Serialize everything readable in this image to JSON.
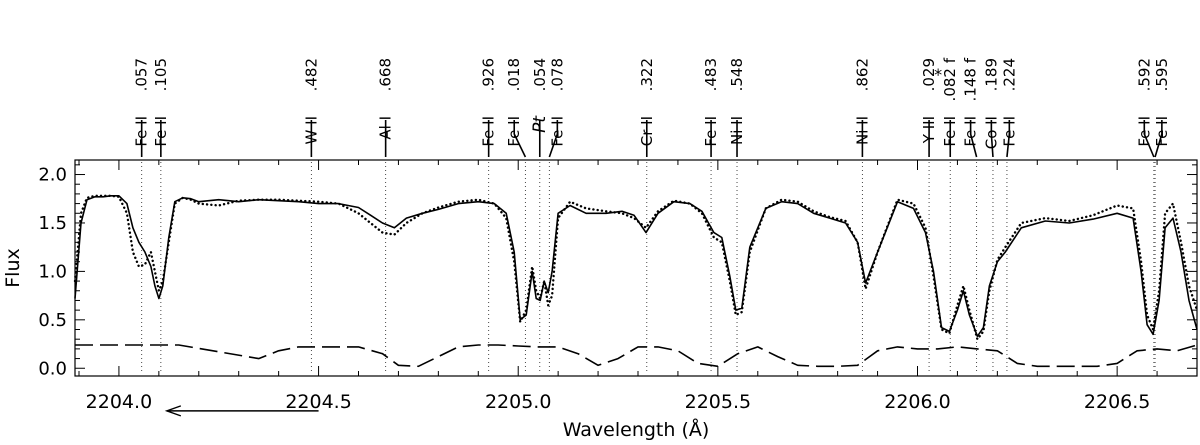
{
  "chart_data": {
    "type": "line",
    "title": "",
    "xlabel": "Wavelength (Å)",
    "ylabel": "Flux",
    "xlim": [
      2203.89,
      2206.7
    ],
    "ylim": [
      -0.08,
      2.15
    ],
    "grid": false,
    "legend": "none",
    "x_ticks": [
      2204.0,
      2204.5,
      2205.0,
      2205.5,
      2206.0,
      2206.5
    ],
    "x_tick_labels": [
      "2204.0",
      "2204.5",
      "2205.0",
      "2205.5",
      "2206.0",
      "2206.5"
    ],
    "y_ticks": [
      0.0,
      0.5,
      1.0,
      1.5,
      2.0
    ],
    "y_tick_labels": [
      "0.0",
      "0.5",
      "1.0",
      "1.5",
      "2.0"
    ],
    "direction_arrow": {
      "from": 2204.5,
      "to": 2204.12,
      "y": -0.44
    },
    "line_ids": [
      {
        "species": "Fe II",
        "digits": ".057",
        "w": 2204.057,
        "label_x": 2204.057
      },
      {
        "species": "Fe II",
        "digits": ".105",
        "w": 2204.105,
        "label_x": 2204.105
      },
      {
        "species": "W II",
        "digits": ".482",
        "w": 2204.482,
        "label_x": 2204.482
      },
      {
        "species": "Al I",
        "digits": ".668",
        "w": 2204.668,
        "label_x": 2204.668
      },
      {
        "species": "Fe II",
        "digits": ".926",
        "w": 2204.926,
        "label_x": 2204.926
      },
      {
        "species": "Fe II",
        "digits": ".018",
        "w": 2205.018,
        "label_x": 2204.99
      },
      {
        "species": "Pt",
        "digits": ".054",
        "w": 2205.054,
        "label_x": 2205.054,
        "italic": true
      },
      {
        "species": "Fe II",
        "digits": ".078",
        "w": 2205.078,
        "label_x": 2205.098
      },
      {
        "species": "Cr II",
        "digits": ".322",
        "w": 2205.322,
        "label_x": 2205.322
      },
      {
        "species": "Fe II",
        "digits": ".483",
        "w": 2205.483,
        "label_x": 2205.483
      },
      {
        "species": "Ni II",
        "digits": ".548",
        "w": 2205.548,
        "label_x": 2205.548
      },
      {
        "species": "Ni II",
        "digits": ".862",
        "w": 2205.862,
        "label_x": 2205.862
      },
      {
        "species": "Y III",
        "digits": ".029",
        "w": 2206.029,
        "label_x": 2206.029,
        "mark": "*"
      },
      {
        "species": "Fe II",
        "digits": ".082 f",
        "w": 2206.082,
        "label_x": 2206.082
      },
      {
        "species": "Fe II",
        "digits": ".148 f",
        "w": 2206.148,
        "label_x": 2206.133
      },
      {
        "species": "Co II",
        "digits": ".189",
        "w": 2206.189,
        "label_x": 2206.185
      },
      {
        "species": "Fe II",
        "digits": ".224",
        "w": 2206.224,
        "label_x": 2206.23
      },
      {
        "species": "Fe II",
        "digits": ".592",
        "w": 2206.592,
        "label_x": 2206.568
      },
      {
        "species": "Fe II",
        "digits": ".595",
        "w": 2206.595,
        "label_x": 2206.612
      }
    ],
    "series": [
      {
        "style": "solid",
        "x": [
          2203.89,
          2203.905,
          2203.92,
          2203.94,
          2203.96,
          2203.98,
          2204.0,
          2204.02,
          2204.035,
          2204.05,
          2204.065,
          2204.08,
          2204.09,
          2204.1,
          2204.11,
          2204.125,
          2204.14,
          2204.16,
          2204.18,
          2204.2,
          2204.25,
          2204.3,
          2204.35,
          2204.4,
          2204.45,
          2204.5,
          2204.55,
          2204.6,
          2204.63,
          2204.66,
          2204.69,
          2204.72,
          2204.76,
          2204.8,
          2204.85,
          2204.9,
          2204.94,
          2204.97,
          2204.99,
          2205.005,
          2205.02,
          2205.035,
          2205.045,
          2205.055,
          2205.065,
          2205.075,
          2205.085,
          2205.1,
          2205.13,
          2205.17,
          2205.22,
          2205.26,
          2205.29,
          2205.32,
          2205.35,
          2205.39,
          2205.43,
          2205.46,
          2205.49,
          2205.51,
          2205.53,
          2205.545,
          2205.56,
          2205.58,
          2205.62,
          2205.66,
          2205.7,
          2205.74,
          2205.78,
          2205.82,
          2205.85,
          2205.87,
          2205.9,
          2205.95,
          2205.99,
          2206.02,
          2206.04,
          2206.06,
          2206.08,
          2206.1,
          2206.115,
          2206.13,
          2206.15,
          2206.165,
          2206.18,
          2206.2,
          2206.22,
          2206.26,
          2206.32,
          2206.38,
          2206.44,
          2206.5,
          2206.54,
          2206.56,
          2206.575,
          2206.59,
          2206.605,
          2206.62,
          2206.64,
          2206.66,
          2206.68,
          2206.7
        ],
        "y": [
          0.72,
          1.5,
          1.74,
          1.77,
          1.77,
          1.78,
          1.78,
          1.7,
          1.45,
          1.3,
          1.2,
          1.05,
          0.85,
          0.72,
          0.85,
          1.35,
          1.72,
          1.76,
          1.75,
          1.72,
          1.74,
          1.72,
          1.74,
          1.73,
          1.72,
          1.7,
          1.7,
          1.66,
          1.58,
          1.5,
          1.45,
          1.55,
          1.6,
          1.64,
          1.7,
          1.72,
          1.7,
          1.6,
          1.2,
          0.5,
          0.55,
          1.0,
          0.72,
          0.7,
          0.9,
          0.78,
          1.0,
          1.6,
          1.68,
          1.6,
          1.6,
          1.62,
          1.58,
          1.4,
          1.6,
          1.72,
          1.7,
          1.62,
          1.4,
          1.35,
          0.95,
          0.6,
          0.62,
          1.25,
          1.65,
          1.72,
          1.7,
          1.6,
          1.55,
          1.5,
          1.3,
          0.88,
          1.2,
          1.72,
          1.65,
          1.4,
          1.0,
          0.42,
          0.38,
          0.6,
          0.8,
          0.55,
          0.33,
          0.42,
          0.85,
          1.1,
          1.2,
          1.45,
          1.52,
          1.5,
          1.54,
          1.6,
          1.55,
          1.0,
          0.45,
          0.35,
          0.7,
          1.45,
          1.55,
          1.2,
          0.7,
          0.4
        ]
      },
      {
        "style": "dotted",
        "x": [
          2203.89,
          2203.905,
          2203.92,
          2203.94,
          2203.96,
          2203.98,
          2204.0,
          2204.02,
          2204.035,
          2204.05,
          2204.065,
          2204.08,
          2204.09,
          2204.1,
          2204.11,
          2204.125,
          2204.14,
          2204.16,
          2204.18,
          2204.2,
          2204.25,
          2204.3,
          2204.35,
          2204.4,
          2204.45,
          2204.5,
          2204.55,
          2204.6,
          2204.63,
          2204.66,
          2204.69,
          2204.72,
          2204.76,
          2204.8,
          2204.85,
          2204.9,
          2204.94,
          2204.97,
          2204.99,
          2205.005,
          2205.02,
          2205.035,
          2205.045,
          2205.055,
          2205.065,
          2205.075,
          2205.085,
          2205.1,
          2205.13,
          2205.17,
          2205.22,
          2205.26,
          2205.29,
          2205.32,
          2205.35,
          2205.39,
          2205.43,
          2205.46,
          2205.49,
          2205.51,
          2205.53,
          2205.545,
          2205.56,
          2205.58,
          2205.62,
          2205.66,
          2205.7,
          2205.74,
          2205.78,
          2205.82,
          2205.85,
          2205.87,
          2205.9,
          2205.95,
          2205.99,
          2206.02,
          2206.04,
          2206.06,
          2206.08,
          2206.1,
          2206.115,
          2206.13,
          2206.15,
          2206.165,
          2206.18,
          2206.2,
          2206.22,
          2206.26,
          2206.32,
          2206.38,
          2206.44,
          2206.5,
          2206.54,
          2206.56,
          2206.575,
          2206.59,
          2206.605,
          2206.62,
          2206.64,
          2206.66,
          2206.68,
          2206.7
        ],
        "y": [
          0.9,
          1.6,
          1.76,
          1.78,
          1.78,
          1.78,
          1.77,
          1.6,
          1.2,
          1.05,
          1.07,
          1.2,
          1.0,
          0.8,
          0.9,
          1.3,
          1.7,
          1.76,
          1.74,
          1.7,
          1.68,
          1.73,
          1.74,
          1.74,
          1.73,
          1.72,
          1.7,
          1.6,
          1.5,
          1.4,
          1.38,
          1.5,
          1.6,
          1.66,
          1.72,
          1.74,
          1.7,
          1.55,
          1.1,
          0.48,
          0.6,
          1.05,
          0.8,
          0.72,
          0.9,
          0.65,
          0.75,
          1.55,
          1.72,
          1.65,
          1.62,
          1.6,
          1.55,
          1.45,
          1.62,
          1.73,
          1.7,
          1.6,
          1.35,
          1.3,
          0.9,
          0.55,
          0.58,
          1.2,
          1.65,
          1.74,
          1.72,
          1.62,
          1.56,
          1.52,
          1.3,
          0.82,
          1.2,
          1.74,
          1.7,
          1.45,
          0.95,
          0.4,
          0.36,
          0.65,
          0.85,
          0.6,
          0.3,
          0.38,
          0.8,
          1.12,
          1.25,
          1.5,
          1.55,
          1.52,
          1.58,
          1.68,
          1.65,
          1.1,
          0.55,
          0.4,
          0.8,
          1.6,
          1.7,
          1.3,
          0.85,
          0.6
        ]
      },
      {
        "style": "dashed",
        "x": [
          2203.89,
          2204.0,
          2204.15,
          2204.35,
          2204.4,
          2204.45,
          2204.6,
          2204.66,
          2204.7,
          2204.75,
          2204.8,
          2204.85,
          2204.9,
          2204.95,
          2205.0,
          2205.05,
          2205.1,
          2205.15,
          2205.2,
          2205.25,
          2205.3,
          2205.35,
          2205.4,
          2205.45,
          2205.5,
          2205.55,
          2205.6,
          2205.65,
          2205.7,
          2205.75,
          2205.8,
          2205.85,
          2205.9,
          2205.95,
          2206.0,
          2206.05,
          2206.1,
          2206.15,
          2206.2,
          2206.25,
          2206.3,
          2206.35,
          2206.4,
          2206.45,
          2206.5,
          2206.55,
          2206.6,
          2206.65,
          2206.7
        ],
        "y": [
          0.24,
          0.24,
          0.24,
          0.1,
          0.18,
          0.22,
          0.22,
          0.15,
          0.03,
          0.02,
          0.12,
          0.22,
          0.24,
          0.24,
          0.23,
          0.22,
          0.22,
          0.15,
          0.03,
          0.1,
          0.22,
          0.22,
          0.18,
          0.05,
          0.02,
          0.15,
          0.22,
          0.12,
          0.03,
          0.02,
          0.02,
          0.03,
          0.18,
          0.22,
          0.2,
          0.2,
          0.22,
          0.2,
          0.18,
          0.05,
          0.02,
          0.02,
          0.02,
          0.02,
          0.05,
          0.18,
          0.2,
          0.18,
          0.24
        ]
      }
    ]
  }
}
